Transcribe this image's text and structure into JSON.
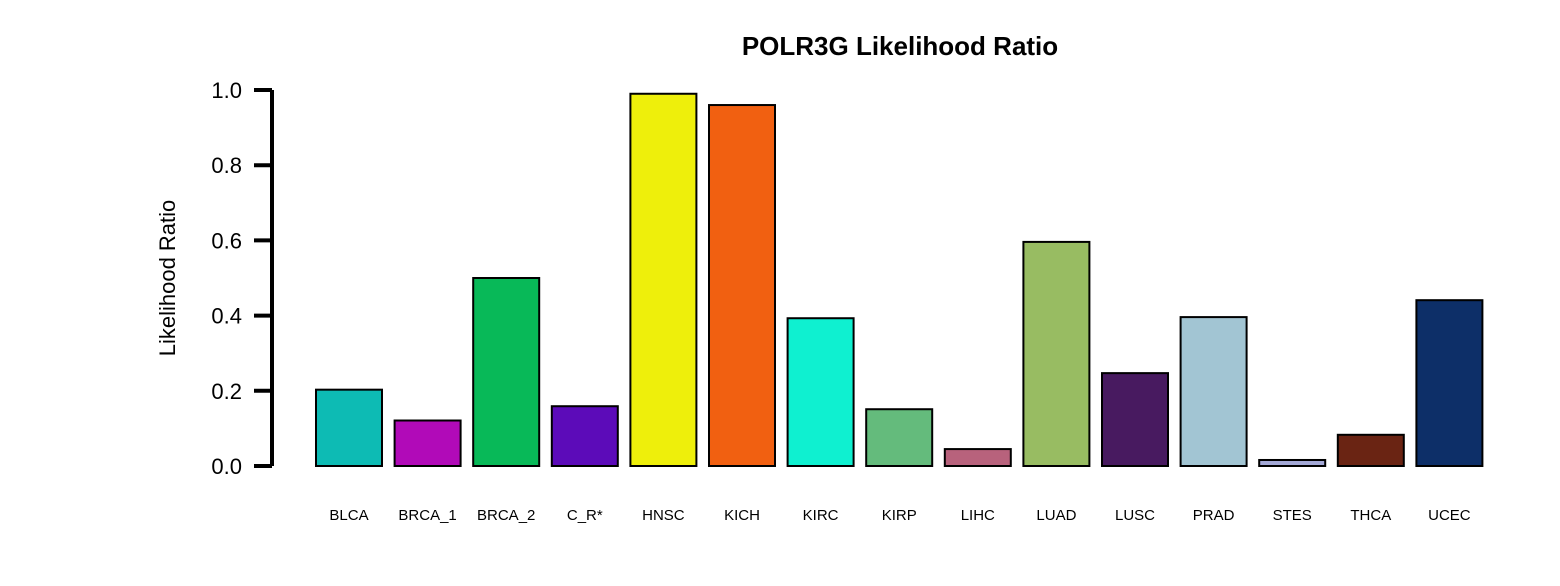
{
  "chart_data": {
    "type": "bar",
    "title": "POLR3G Likelihood Ratio",
    "xlabel": "",
    "ylabel": "Likelihood Ratio",
    "ylim": [
      0,
      1.0
    ],
    "yticks": [
      "0.0",
      "0.2",
      "0.4",
      "0.6",
      "0.8",
      "1.0"
    ],
    "grid": false,
    "legend": "none",
    "categories": [
      "BLCA",
      "BRCA_1",
      "BRCA_2",
      "C_R*",
      "HNSC",
      "KICH",
      "KIRC",
      "KIRP",
      "LIHC",
      "LUAD",
      "LUSC",
      "PRAD",
      "STES",
      "THCA",
      "UCEC"
    ],
    "values": [
      0.203,
      0.121,
      0.5,
      0.159,
      0.99,
      0.96,
      0.393,
      0.151,
      0.045,
      0.596,
      0.247,
      0.396,
      0.016,
      0.083,
      0.441
    ],
    "colors": [
      "#0dbbb4",
      "#b10ab8",
      "#08b958",
      "#5c0bb9",
      "#eeef0b",
      "#f16011",
      "#0ff0d0",
      "#64bb7c",
      "#b8627c",
      "#98bc62",
      "#481a60",
      "#a2c5d3",
      "#a3a8d6",
      "#6a2413",
      "#0d2f68"
    ]
  }
}
